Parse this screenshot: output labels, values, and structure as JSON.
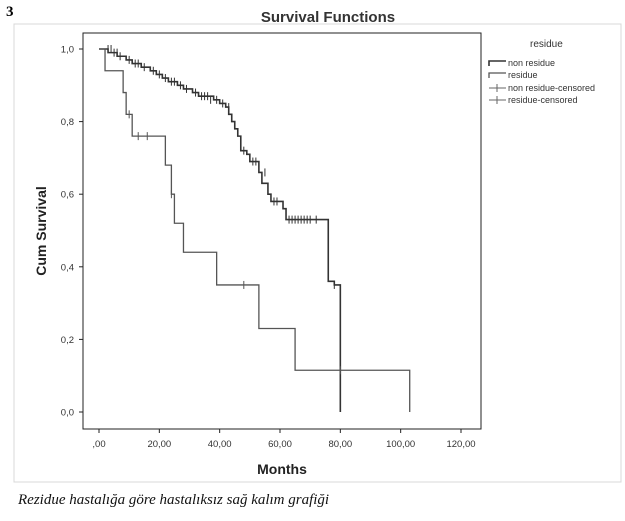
{
  "panel_label": "3",
  "caption": "Rezidue hastalığa göre hastalıksız sağ kalım grafiği",
  "chart_data": {
    "type": "line",
    "title": "Survival Functions",
    "xlabel": "Months",
    "ylabel": "Cum Survival",
    "xlim": [
      0,
      120
    ],
    "ylim": [
      0,
      1
    ],
    "x_ticks": [
      0,
      20,
      40,
      60,
      80,
      100,
      120
    ],
    "x_tick_labels": [
      ",00",
      "20,00",
      "40,00",
      "60,00",
      "80,00",
      "100,00",
      "120,00"
    ],
    "y_ticks": [
      0,
      0.2,
      0.4,
      0.6,
      0.8,
      1.0
    ],
    "y_tick_labels": [
      "0,0",
      "0,2",
      "0,4",
      "0,6",
      "0,8",
      "1,0"
    ],
    "legend": {
      "title": "residue",
      "placement": "top-right",
      "entries": [
        "non residue",
        "residue",
        "non residue-censored",
        "residue-censored"
      ]
    },
    "series": [
      {
        "name": "non residue",
        "color": "#333333",
        "steps": [
          [
            0,
            1.0
          ],
          [
            3,
            0.99
          ],
          [
            6,
            0.98
          ],
          [
            9,
            0.97
          ],
          [
            11,
            0.96
          ],
          [
            14,
            0.95
          ],
          [
            17,
            0.94
          ],
          [
            19,
            0.93
          ],
          [
            21,
            0.92
          ],
          [
            23,
            0.91
          ],
          [
            26,
            0.9
          ],
          [
            28,
            0.89
          ],
          [
            31,
            0.88
          ],
          [
            33,
            0.87
          ],
          [
            38,
            0.86
          ],
          [
            40,
            0.85
          ],
          [
            42,
            0.84
          ],
          [
            43,
            0.82
          ],
          [
            44,
            0.8
          ],
          [
            45,
            0.78
          ],
          [
            46,
            0.76
          ],
          [
            47,
            0.72
          ],
          [
            49,
            0.71
          ],
          [
            50,
            0.69
          ],
          [
            53,
            0.66
          ],
          [
            54,
            0.63
          ],
          [
            56,
            0.6
          ],
          [
            57,
            0.58
          ],
          [
            61,
            0.56
          ],
          [
            62,
            0.53
          ],
          [
            75,
            0.53
          ],
          [
            76,
            0.36
          ],
          [
            78,
            0.35
          ],
          [
            80,
            0.0
          ]
        ],
        "censored": [
          [
            3,
            1.0
          ],
          [
            4,
            1.0
          ],
          [
            5,
            0.99
          ],
          [
            6,
            0.99
          ],
          [
            7,
            0.98
          ],
          [
            10,
            0.97
          ],
          [
            12,
            0.96
          ],
          [
            13,
            0.96
          ],
          [
            15,
            0.95
          ],
          [
            18,
            0.94
          ],
          [
            20,
            0.93
          ],
          [
            22,
            0.92
          ],
          [
            24,
            0.91
          ],
          [
            25,
            0.91
          ],
          [
            27,
            0.9
          ],
          [
            29,
            0.89
          ],
          [
            32,
            0.88
          ],
          [
            34,
            0.87
          ],
          [
            35,
            0.87
          ],
          [
            36,
            0.87
          ],
          [
            37,
            0.86
          ],
          [
            39,
            0.86
          ],
          [
            41,
            0.85
          ],
          [
            43,
            0.84
          ],
          [
            48,
            0.72
          ],
          [
            51,
            0.69
          ],
          [
            52,
            0.69
          ],
          [
            55,
            0.66
          ],
          [
            58,
            0.58
          ],
          [
            59,
            0.58
          ],
          [
            63,
            0.53
          ],
          [
            64,
            0.53
          ],
          [
            65,
            0.53
          ],
          [
            66,
            0.53
          ],
          [
            67,
            0.53
          ],
          [
            68,
            0.53
          ],
          [
            69,
            0.53
          ],
          [
            70,
            0.53
          ],
          [
            72,
            0.53
          ],
          [
            78,
            0.35
          ]
        ]
      },
      {
        "name": "residue",
        "color": "#555555",
        "steps": [
          [
            0,
            1.0
          ],
          [
            2,
            0.94
          ],
          [
            6,
            0.94
          ],
          [
            8,
            0.88
          ],
          [
            9,
            0.82
          ],
          [
            11,
            0.76
          ],
          [
            20,
            0.76
          ],
          [
            22,
            0.68
          ],
          [
            24,
            0.6
          ],
          [
            25,
            0.52
          ],
          [
            28,
            0.44
          ],
          [
            39,
            0.44
          ],
          [
            39,
            0.35
          ],
          [
            53,
            0.35
          ],
          [
            53,
            0.23
          ],
          [
            65,
            0.23
          ],
          [
            65,
            0.115
          ],
          [
            103,
            0.115
          ],
          [
            103,
            0.0
          ]
        ],
        "censored": [
          [
            10,
            0.82
          ],
          [
            13,
            0.76
          ],
          [
            16,
            0.76
          ],
          [
            24,
            0.6
          ],
          [
            48,
            0.35
          ],
          [
            80,
            0.115
          ]
        ]
      }
    ]
  }
}
